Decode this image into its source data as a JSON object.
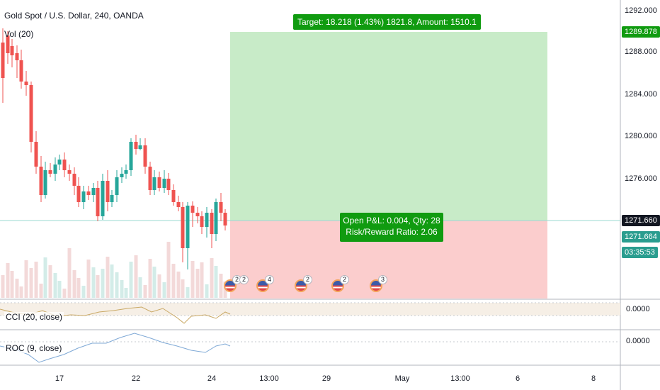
{
  "header": {
    "title": "Gold Spot / U.S. Dollar, 240, OANDA",
    "volume_indicator": "Vol (20)"
  },
  "price_scale": {
    "ticks": [
      "1292.000",
      "1288.000",
      "1284.000",
      "1280.000",
      "1276.000"
    ],
    "target_tag": "1289.878",
    "entry_tag": "1271.660",
    "last_price_tag": "1271.664",
    "countdown": "03:35:53"
  },
  "position": {
    "target_label": "Target: 18.218 (1.43%) 1821.8, Amount: 1510.1",
    "pnl_label": "Open P&L: 0.004, Qty: 28",
    "rr_label": "Risk/Reward Ratio: 2.06"
  },
  "cci_pane": {
    "legend": "CCI (20, close)",
    "value": "0.0000"
  },
  "roc_pane": {
    "legend": "ROC (9, close)",
    "value": "0.0000"
  },
  "time_axis": [
    "17",
    "22",
    "24",
    "13:00",
    "29",
    "May",
    "13:00",
    "6",
    "8"
  ],
  "events": [
    {
      "icon": "us-flag-icon",
      "count": "2"
    },
    {
      "icon": "us-flag-icon",
      "count": "2"
    },
    {
      "icon": "us-flag-icon",
      "count": "4"
    },
    {
      "icon": "us-flag-icon",
      "count": "2"
    },
    {
      "icon": "us-flag-icon",
      "count": "2"
    },
    {
      "icon": "us-flag-icon",
      "count": "3"
    }
  ],
  "colors": {
    "up": "#26a69a",
    "down": "#ef5350",
    "profit_zone": "#c8ebc8",
    "loss_zone": "#fbcdcd",
    "label_green": "#109b10",
    "price_tag": "#131722",
    "last_price": "#2a9d8f"
  }
}
